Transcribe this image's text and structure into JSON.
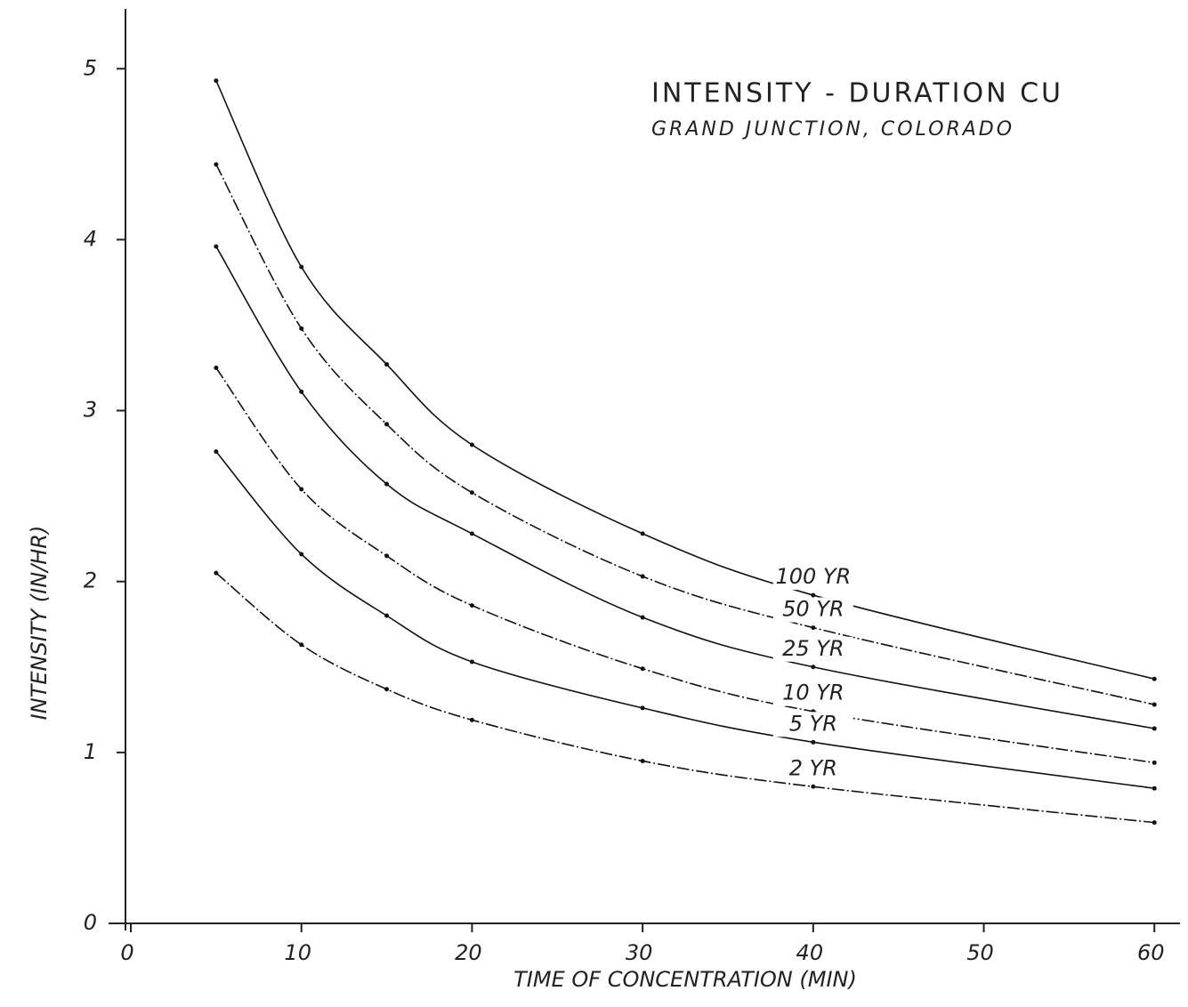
{
  "chart_data": {
    "type": "line",
    "title": "INTENSITY - DURATION CU",
    "subtitle": "GRAND JUNCTION, COLORADO",
    "x_label": "TIME OF CONCENTRATION (MIN)",
    "y_label": "INTENSITY (IN/HR)",
    "x": [
      5,
      10,
      15,
      20,
      30,
      40,
      60
    ],
    "series": [
      {
        "name": "100 YR",
        "color": "#111111",
        "values": [
          4.93,
          3.84,
          3.27,
          2.8,
          2.28,
          1.92,
          1.43
        ]
      },
      {
        "name": "50 YR",
        "color": "#111111",
        "values": [
          4.44,
          3.48,
          2.92,
          2.52,
          2.03,
          1.73,
          1.28
        ]
      },
      {
        "name": "25 YR",
        "color": "#111111",
        "values": [
          3.96,
          3.11,
          2.57,
          2.28,
          1.79,
          1.5,
          1.14
        ]
      },
      {
        "name": "10 YR",
        "color": "#111111",
        "values": [
          3.25,
          2.54,
          2.15,
          1.86,
          1.49,
          1.24,
          0.94
        ]
      },
      {
        "name": "5 YR",
        "color": "#111111",
        "values": [
          2.76,
          2.16,
          1.8,
          1.53,
          1.26,
          1.06,
          0.79
        ]
      },
      {
        "name": "2 YR",
        "color": "#111111",
        "values": [
          2.05,
          1.63,
          1.37,
          1.19,
          0.95,
          0.8,
          0.59
        ]
      }
    ],
    "xlim": [
      0,
      61.5
    ],
    "xticks": [
      0,
      10,
      20,
      30,
      40,
      50,
      60
    ],
    "ylim": [
      0,
      5.35
    ],
    "yticks": [
      0,
      1,
      2,
      3,
      4,
      5
    ],
    "grid": false
  }
}
